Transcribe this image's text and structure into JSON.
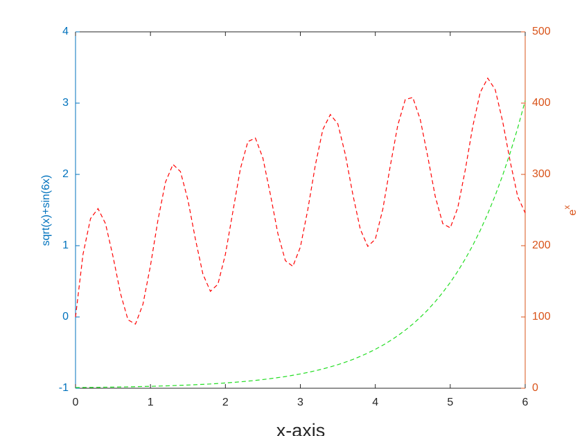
{
  "chart_data": {
    "type": "line",
    "xlabel": "x-axis",
    "ylabel": "sqrt(x)+sin(6x)",
    "y2label": {
      "base": "e",
      "exponent": "x"
    },
    "x": [
      0,
      0.1,
      0.2,
      0.3,
      0.4,
      0.5,
      0.6,
      0.7,
      0.8,
      0.9,
      1,
      1.1,
      1.2,
      1.3,
      1.4,
      1.5,
      1.6,
      1.7,
      1.8,
      1.9,
      2,
      2.1,
      2.2,
      2.3,
      2.4,
      2.5,
      2.6,
      2.7,
      2.8,
      2.9,
      3,
      3.1,
      3.2,
      3.3,
      3.4,
      3.5,
      3.6,
      3.7,
      3.8,
      3.9,
      4,
      4.1,
      4.2,
      4.3,
      4.4,
      4.5,
      4.6,
      4.7,
      4.8,
      4.9,
      5,
      5.1,
      5.2,
      5.3,
      5.4,
      5.5,
      5.6,
      5.7,
      5.8,
      5.9,
      6
    ],
    "series": [
      {
        "color": "#ff0000",
        "axis": "y",
        "values": [
          0,
          0.88,
          1.38,
          1.52,
          1.31,
          0.85,
          0.33,
          -0.04,
          -0.1,
          0.18,
          0.72,
          1.36,
          1.89,
          2.14,
          2.04,
          1.64,
          1.09,
          0.6,
          0.36,
          0.46,
          0.88,
          1.48,
          2.08,
          2.46,
          2.51,
          2.23,
          1.72,
          1.17,
          0.79,
          0.71,
          0.98,
          1.51,
          2.13,
          2.63,
          2.84,
          2.71,
          2.28,
          1.72,
          1.23,
          0.99,
          1.09,
          1.51,
          2.12,
          2.69,
          3.05,
          3.08,
          2.77,
          2.25,
          1.69,
          1.31,
          1.25,
          1.53,
          2.06,
          2.67,
          3.15,
          3.35,
          3.19,
          2.74,
          2.18,
          1.69,
          1.46
        ]
      },
      {
        "color": "#22dd22",
        "axis": "y2",
        "values": [
          1,
          1.1,
          1.2,
          1.3,
          1.5,
          1.6,
          1.8,
          2.0,
          2.2,
          2.5,
          2.7,
          3.0,
          3.3,
          3.7,
          4.1,
          4.5,
          5.0,
          5.5,
          6.0,
          6.7,
          7.4,
          8.2,
          9.0,
          10.0,
          11.0,
          12.2,
          13.5,
          14.9,
          16.4,
          18.2,
          20.1,
          22.2,
          24.5,
          27.1,
          30.0,
          33.1,
          36.6,
          40.4,
          44.7,
          49.4,
          54.6,
          60.3,
          66.7,
          73.7,
          81.5,
          90.0,
          99.5,
          109.9,
          121.5,
          134.3,
          148.4,
          164.0,
          181.3,
          200.3,
          221.4,
          244.7,
          270.4,
          298.9,
          330.3,
          365.0,
          403.4
        ]
      }
    ],
    "xlim": [
      0,
      6
    ],
    "xticks": [
      0,
      1,
      2,
      3,
      4,
      5,
      6
    ],
    "ylim": [
      -1,
      4
    ],
    "yticks": [
      -1,
      0,
      1,
      2,
      3,
      4
    ],
    "ycolor": "#0072bd",
    "y2lim": [
      0,
      500
    ],
    "y2ticks": [
      0,
      100,
      200,
      300,
      400,
      500
    ],
    "y2color": "#d95319",
    "grid": false,
    "line_style": "dashed"
  }
}
